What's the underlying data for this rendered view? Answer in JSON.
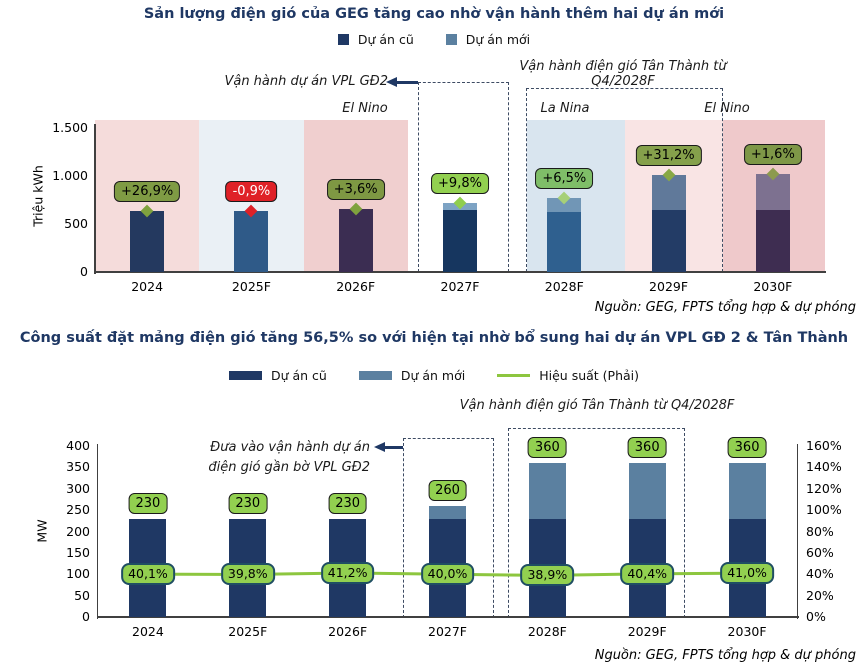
{
  "source_note": "Nguồn: GEG, FPTS tổng hợp & dự phóng",
  "chart_data": [
    {
      "type": "bar",
      "title": "Sản lượng điện gió của GEG tăng cao nhờ vận hành thêm hai dự án mới",
      "ylabel": "Triệu kWh",
      "categories": [
        "2024",
        "2025F",
        "2026F",
        "2027F",
        "2028F",
        "2029F",
        "2030F"
      ],
      "series": [
        {
          "name": "Dự án cũ",
          "values": [
            640,
            634,
            657,
            650,
            622,
            650,
            650
          ]
        },
        {
          "name": "Dự án mới",
          "values": [
            0,
            0,
            0,
            72,
            147,
            359,
            375
          ]
        }
      ],
      "growth_labels": [
        "+26,9%",
        "-0,9%",
        "+3,6%",
        "+9,8%",
        "+6,5%",
        "+31,2%",
        "+1,6%"
      ],
      "ylim": [
        0,
        1500
      ],
      "yticks": [
        {
          "v": 0,
          "label": "0"
        },
        {
          "v": 500,
          "label": "500"
        },
        {
          "v": 1000,
          "label": "1.000"
        },
        {
          "v": 1500,
          "label": "1.500"
        }
      ],
      "grid": false,
      "legend_position": "top",
      "climate_labels": [
        "El Nino",
        "La Nina",
        "El Nino"
      ],
      "annotations": {
        "vpl": "Vận hành dự án VPL GĐ2",
        "tan_thanh": "Vận hành điện gió Tân Thành từ Q4/2028F"
      }
    },
    {
      "type": "bar+line",
      "title": "Công suất đặt mảng điện gió tăng 56,5% so với hiện tại nhờ bổ sung hai dự án VPL GĐ 2 & Tân Thành",
      "ylabel_left": "MW",
      "categories": [
        "2024",
        "2025F",
        "2026F",
        "2027F",
        "2028F",
        "2029F",
        "2030F"
      ],
      "series": [
        {
          "name": "Dự án cũ",
          "axis": "left",
          "values": [
            230,
            230,
            230,
            230,
            230,
            230,
            230
          ]
        },
        {
          "name": "Dự án mới",
          "axis": "left",
          "values": [
            0,
            0,
            0,
            30,
            130,
            130,
            130
          ]
        },
        {
          "name": "Hiệu suất (Phải)",
          "axis": "right",
          "type": "line",
          "values": [
            40.1,
            39.8,
            41.2,
            40.0,
            38.9,
            40.4,
            41.0
          ]
        }
      ],
      "total_labels": [
        "230",
        "230",
        "230",
        "260",
        "360",
        "360",
        "360"
      ],
      "efficiency_labels": [
        "40,1%",
        "39,8%",
        "41,2%",
        "40,0%",
        "38,9%",
        "40,4%",
        "41,0%"
      ],
      "ylim_left": [
        0,
        400
      ],
      "ylim_right": [
        0,
        160
      ],
      "yticks_left": [
        0,
        50,
        100,
        150,
        200,
        250,
        300,
        350,
        400
      ],
      "yticks_right": [
        "0%",
        "20%",
        "40%",
        "60%",
        "80%",
        "100%",
        "120%",
        "140%",
        "160%"
      ],
      "grid": false,
      "legend_position": "top",
      "annotations": {
        "vpl_line1": "Đưa vào vận hành dự án",
        "vpl_line2": "điện gió gần bờ VPL GĐ2",
        "tan_thanh": "Vận hành điện gió Tân Thành từ Q4/2028F"
      }
    }
  ],
  "style": {
    "title_color": "#1F3864",
    "axis_color": "#404040",
    "dashed_box_color": "#3D4B63",
    "arrow_color": "#1F3864",
    "production": {
      "band_colors": [
        "#F5DCDB",
        "#EAF0F5",
        "#F0CFCF",
        "#D9E5EF",
        "#F9E4E4",
        "#EFC9CB"
      ],
      "bar_old": [
        "#24395F",
        "#2F5A88",
        "#3B2D52",
        "#16365F",
        "#2F608F",
        "#233C66",
        "#3E2D51"
      ],
      "bar_new": [
        null,
        null,
        null,
        "#7DA3C4",
        "#7196B6",
        "#60799A",
        "#7D7190"
      ],
      "badge_fill": [
        "#7F9B44",
        "#DF2127",
        "#7E9843",
        "#92D050",
        "#7FBE68",
        "#85A04B",
        "#7E9747"
      ],
      "badge_text": [
        "#000000",
        "#FFFFFF",
        "#000000",
        "#000000",
        "#000000",
        "#000000",
        "#000000"
      ],
      "diamond": [
        "#7FA23E",
        "#DE2128",
        "#7FA23E",
        "#8FCE4E",
        "#A7D077",
        "#89A845",
        "#8C9A4E"
      ]
    },
    "capacity": {
      "bar_old": "#1F3864",
      "bar_new": "#5B80A0",
      "line": "#8DC63F",
      "value_badge_fill": "#92D050",
      "eff_badge_fill": "#92D050",
      "eff_badge_border": "#1F4E63"
    },
    "legend_swatches": {
      "old": "#1F3864",
      "new": "#5B80A0",
      "line": "#8DC63F"
    }
  }
}
